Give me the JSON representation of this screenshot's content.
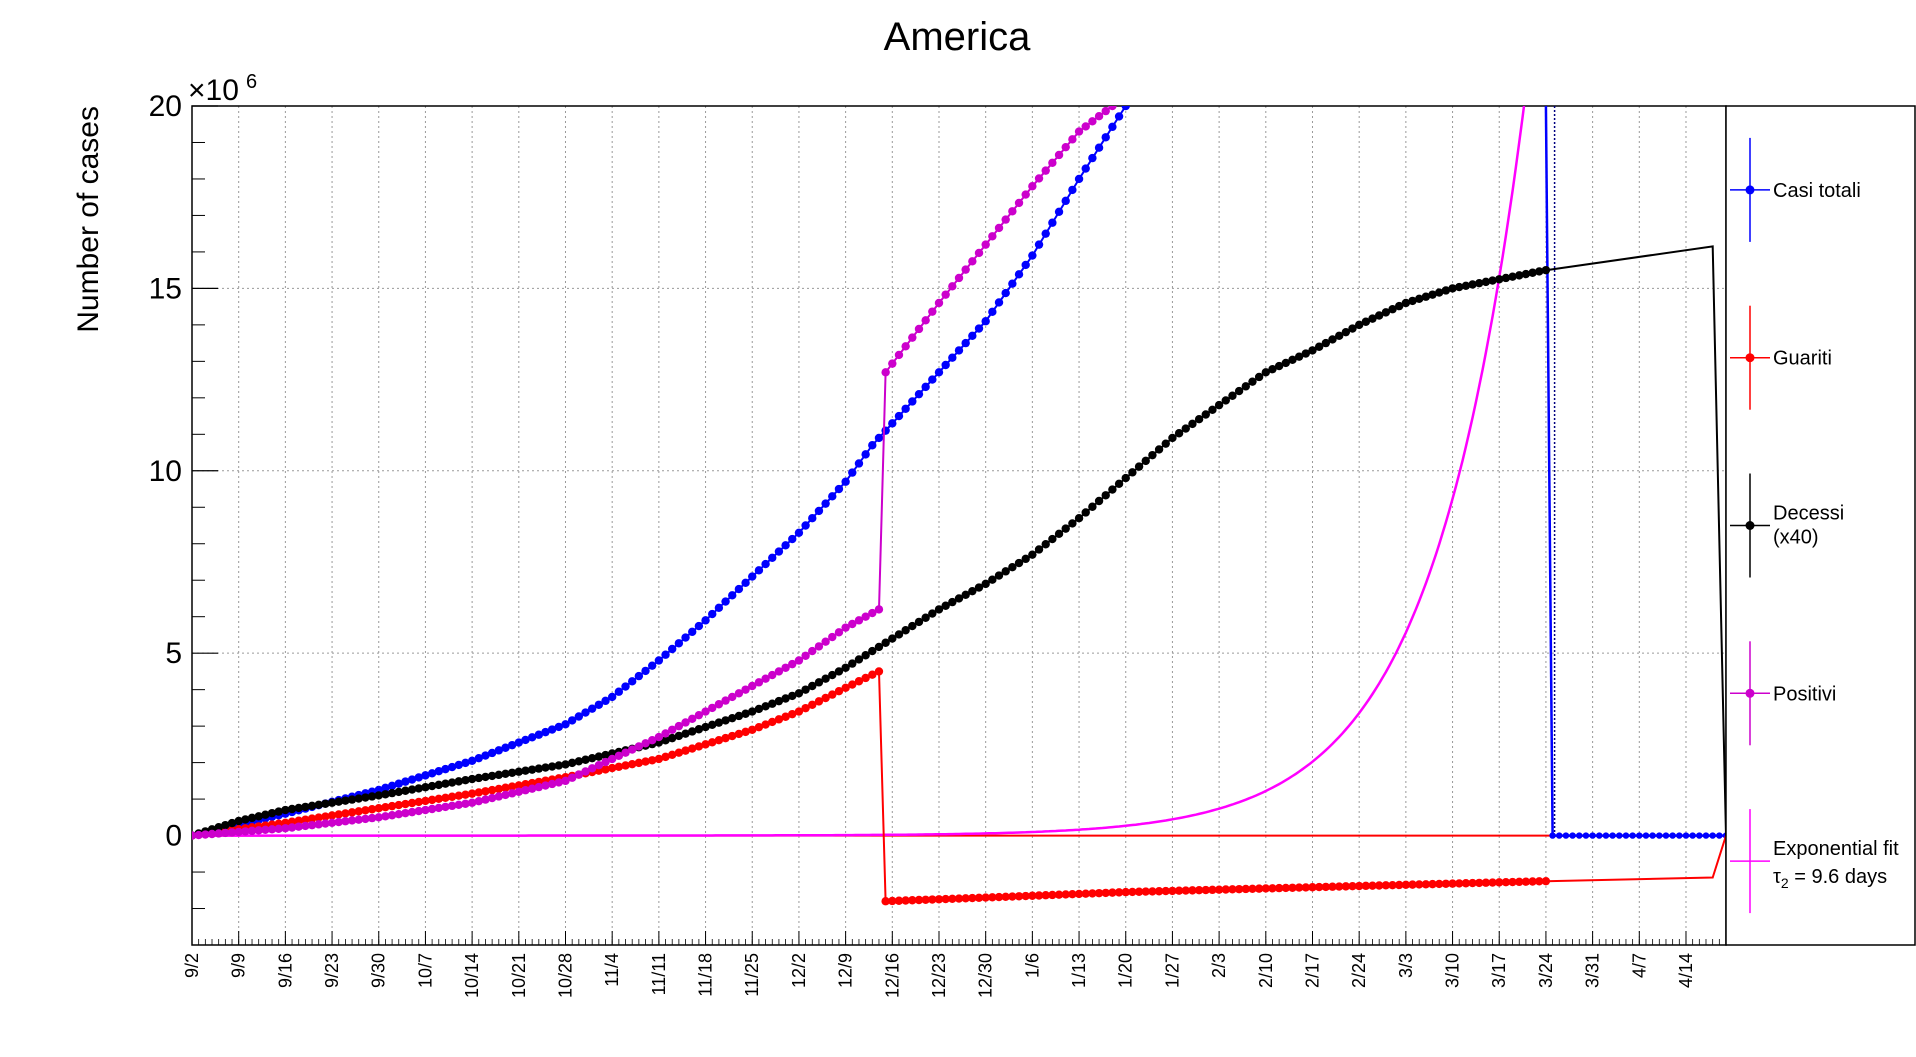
{
  "chart_data": {
    "type": "line",
    "title": "America",
    "ylabel": "Number of cases",
    "xlabel": "",
    "y_multiplier": "×10",
    "y_multiplier_exp": "6",
    "y_unit": 1000000,
    "ylim": [
      -3000000,
      20000000
    ],
    "xlim": [
      0,
      230
    ],
    "grid": true,
    "legend_position": "right",
    "x_ticks": [
      {
        "day": 0,
        "label": "9/2"
      },
      {
        "day": 7,
        "label": "9/9"
      },
      {
        "day": 14,
        "label": "9/16"
      },
      {
        "day": 21,
        "label": "9/23"
      },
      {
        "day": 28,
        "label": "9/30"
      },
      {
        "day": 35,
        "label": "10/7"
      },
      {
        "day": 42,
        "label": "10/14"
      },
      {
        "day": 49,
        "label": "10/21"
      },
      {
        "day": 56,
        "label": "10/28"
      },
      {
        "day": 63,
        "label": "11/4"
      },
      {
        "day": 70,
        "label": "11/11"
      },
      {
        "day": 77,
        "label": "11/18"
      },
      {
        "day": 84,
        "label": "11/25"
      },
      {
        "day": 91,
        "label": "12/2"
      },
      {
        "day": 98,
        "label": "12/9"
      },
      {
        "day": 105,
        "label": "12/16"
      },
      {
        "day": 112,
        "label": "12/23"
      },
      {
        "day": 119,
        "label": "12/30"
      },
      {
        "day": 126,
        "label": "1/6"
      },
      {
        "day": 133,
        "label": "1/13"
      },
      {
        "day": 140,
        "label": "1/20"
      },
      {
        "day": 147,
        "label": "1/27"
      },
      {
        "day": 154,
        "label": "2/3"
      },
      {
        "day": 161,
        "label": "2/10"
      },
      {
        "day": 168,
        "label": "2/17"
      },
      {
        "day": 175,
        "label": "2/24"
      },
      {
        "day": 182,
        "label": "3/3"
      },
      {
        "day": 189,
        "label": "3/10"
      },
      {
        "day": 196,
        "label": "3/17"
      },
      {
        "day": 203,
        "label": "3/24"
      },
      {
        "day": 210,
        "label": "3/31"
      },
      {
        "day": 217,
        "label": "4/7"
      },
      {
        "day": 224,
        "label": "4/14"
      }
    ],
    "y_ticks": [
      {
        "value": 0,
        "label": "0"
      },
      {
        "value": 5000000,
        "label": "5"
      },
      {
        "value": 10000000,
        "label": "10"
      },
      {
        "value": 15000000,
        "label": "15"
      },
      {
        "value": 20000000,
        "label": "20"
      }
    ],
    "series": [
      {
        "name": "Casi totali",
        "color": "#0000ff",
        "style": "markers",
        "start_day": 0,
        "end_day": 140,
        "last_line_day": 203,
        "drop_day": 204,
        "end_line_day": 230,
        "points": [
          [
            0,
            0
          ],
          [
            14,
            600000
          ],
          [
            28,
            1250000
          ],
          [
            42,
            2050000
          ],
          [
            56,
            3050000
          ],
          [
            63,
            3800000
          ],
          [
            70,
            4800000
          ],
          [
            77,
            5900000
          ],
          [
            84,
            7100000
          ],
          [
            91,
            8300000
          ],
          [
            98,
            9700000
          ],
          [
            102,
            10700000
          ],
          [
            105,
            11300000
          ],
          [
            112,
            12700000
          ],
          [
            119,
            14100000
          ],
          [
            126,
            15900000
          ],
          [
            133,
            18000000
          ],
          [
            140,
            20000000
          ]
        ],
        "tail": [
          [
            204,
            0
          ],
          [
            230,
            0
          ]
        ]
      },
      {
        "name": "Guariti",
        "color": "#ff0000",
        "style": "markers",
        "start_day": 0,
        "end_day": 230,
        "points": [
          [
            0,
            0
          ],
          [
            14,
            350000
          ],
          [
            28,
            750000
          ],
          [
            42,
            1150000
          ],
          [
            56,
            1600000
          ],
          [
            70,
            2100000
          ],
          [
            84,
            2900000
          ],
          [
            91,
            3400000
          ],
          [
            98,
            4050000
          ],
          [
            103,
            4500000
          ],
          [
            104,
            -1800000
          ],
          [
            119,
            -1700000
          ],
          [
            140,
            -1550000
          ],
          [
            161,
            -1450000
          ],
          [
            182,
            -1350000
          ],
          [
            203,
            -1250000
          ]
        ],
        "line_tail": [
          [
            203,
            -1250000
          ],
          [
            228,
            -1150000
          ],
          [
            230,
            0
          ]
        ]
      },
      {
        "name": "Decessi (x40)",
        "color": "#000000",
        "style": "markers",
        "start_day": 0,
        "end_day": 230,
        "points": [
          [
            0,
            0
          ],
          [
            7,
            400000
          ],
          [
            14,
            700000
          ],
          [
            28,
            1100000
          ],
          [
            42,
            1550000
          ],
          [
            56,
            1950000
          ],
          [
            70,
            2550000
          ],
          [
            84,
            3400000
          ],
          [
            91,
            3900000
          ],
          [
            98,
            4600000
          ],
          [
            105,
            5400000
          ],
          [
            112,
            6200000
          ],
          [
            119,
            6900000
          ],
          [
            126,
            7700000
          ],
          [
            133,
            8700000
          ],
          [
            140,
            9800000
          ],
          [
            147,
            10900000
          ],
          [
            154,
            11800000
          ],
          [
            161,
            12700000
          ],
          [
            168,
            13300000
          ],
          [
            175,
            14000000
          ],
          [
            182,
            14600000
          ],
          [
            189,
            15000000
          ],
          [
            196,
            15250000
          ],
          [
            203,
            15500000
          ]
        ],
        "line_tail": [
          [
            203,
            15500000
          ],
          [
            228,
            16150000
          ],
          [
            230,
            0
          ]
        ]
      },
      {
        "name": "Positivi",
        "color": "#cc00cc",
        "style": "markers",
        "start_day": 0,
        "end_day": 138,
        "points": [
          [
            0,
            0
          ],
          [
            14,
            200000
          ],
          [
            28,
            500000
          ],
          [
            42,
            900000
          ],
          [
            56,
            1500000
          ],
          [
            63,
            2100000
          ],
          [
            70,
            2700000
          ],
          [
            77,
            3400000
          ],
          [
            84,
            4100000
          ],
          [
            91,
            4800000
          ],
          [
            98,
            5700000
          ],
          [
            103,
            6200000
          ],
          [
            104,
            12700000
          ],
          [
            112,
            14600000
          ],
          [
            119,
            16200000
          ],
          [
            126,
            17800000
          ],
          [
            133,
            19300000
          ],
          [
            138,
            20000000
          ]
        ]
      },
      {
        "name": "Exponential fit",
        "color": "#ff00ff",
        "style": "curve",
        "fit_label_line2_prefix": "τ",
        "fit_label_line2_sub": "2",
        "fit_label_line2_rest": " = 9.6 days",
        "tau2_days": 9.6,
        "anchor_day": 196,
        "anchor_value": 15300000,
        "end_value": 20000000,
        "ref_line_color": "#ff0000"
      }
    ],
    "legend": [
      {
        "label_line1": "Casi totali",
        "label_line2": "",
        "color": "#0000ff"
      },
      {
        "label_line1": "Guariti",
        "label_line2": "",
        "color": "#ff0000"
      },
      {
        "label_line1": "Decessi",
        "label_line2": "(x40)",
        "color": "#000000"
      },
      {
        "label_line1": "Positivi",
        "label_line2": "",
        "color": "#cc00cc"
      },
      {
        "label_line1": "Exponential fit",
        "label_line2": "",
        "color": "#ff00ff"
      }
    ]
  }
}
